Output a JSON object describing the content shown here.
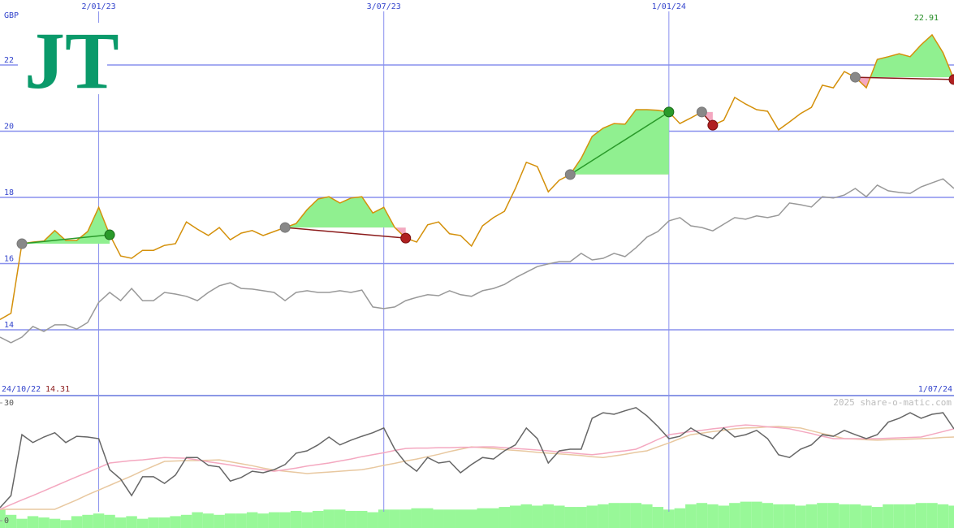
{
  "logo": "JT",
  "source": "2025 share-o-matic.com",
  "chart_data": [
    {
      "type": "line",
      "ylabel": "GBP",
      "categories": [
        "24/10/22",
        null,
        null,
        null,
        null,
        null,
        null,
        null,
        null,
        "2/01/23",
        null,
        null,
        null,
        null,
        null,
        null,
        null,
        null,
        null,
        null,
        null,
        null,
        null,
        null,
        null,
        null,
        null,
        null,
        null,
        null,
        null,
        null,
        null,
        null,
        null,
        "3/07/23",
        null,
        null,
        null,
        null,
        null,
        null,
        null,
        null,
        null,
        null,
        null,
        null,
        null,
        null,
        null,
        null,
        null,
        null,
        null,
        null,
        null,
        null,
        null,
        null,
        null,
        "1/01/24",
        null,
        null,
        null,
        null,
        null,
        null,
        null,
        null,
        null,
        null,
        null,
        null,
        null,
        null,
        null,
        null,
        null,
        null,
        null,
        null,
        null,
        null,
        null,
        null,
        null,
        "1/07/24"
      ],
      "ylim": [
        12,
        24
      ],
      "yticks": [
        14,
        16,
        18,
        20,
        22
      ],
      "grid": true,
      "series": [
        {
          "color": "#d4900a",
          "values": [
            14.31,
            14.5,
            16.6,
            16.65,
            16.68,
            17.0,
            16.7,
            16.7,
            16.97,
            17.7,
            16.87,
            16.23,
            16.16,
            16.4,
            16.4,
            16.55,
            16.6,
            17.26,
            17.04,
            16.85,
            17.09,
            16.72,
            16.92,
            17.0,
            16.85,
            16.97,
            17.09,
            17.21,
            17.63,
            17.95,
            18.02,
            17.83,
            17.98,
            18.02,
            17.53,
            17.7,
            17.09,
            16.77,
            16.65,
            17.17,
            17.26,
            16.9,
            16.85,
            16.53,
            17.14,
            17.39,
            17.58,
            18.27,
            19.06,
            18.93,
            18.17,
            18.52,
            18.69,
            19.18,
            19.84,
            20.09,
            20.23,
            20.21,
            20.65,
            20.65,
            20.63,
            20.58,
            20.23,
            20.4,
            20.58,
            20.18,
            20.33,
            21.02,
            20.82,
            20.65,
            20.6,
            20.04,
            20.28,
            20.53,
            20.72,
            21.39,
            21.31,
            21.8,
            21.63,
            21.31,
            22.17,
            22.25,
            22.34,
            22.25,
            22.61,
            22.91,
            22.37,
            21.56
          ]
        },
        {
          "color": "#999999",
          "values": [
            13.78,
            13.61,
            13.78,
            14.1,
            13.95,
            14.15,
            14.15,
            14.02,
            14.22,
            14.83,
            15.13,
            14.88,
            15.25,
            14.88,
            14.88,
            15.13,
            15.08,
            15.01,
            14.88,
            15.13,
            15.33,
            15.42,
            15.25,
            15.23,
            15.18,
            15.13,
            14.88,
            15.13,
            15.18,
            15.13,
            15.13,
            15.18,
            15.13,
            15.2,
            14.69,
            14.64,
            14.69,
            14.88,
            14.98,
            15.06,
            15.03,
            15.18,
            15.06,
            15.01,
            15.18,
            15.25,
            15.37,
            15.57,
            15.74,
            15.91,
            15.99,
            16.06,
            16.06,
            16.31,
            16.11,
            16.16,
            16.31,
            16.21,
            16.48,
            16.8,
            16.97,
            17.29,
            17.39,
            17.14,
            17.09,
            16.99,
            17.19,
            17.39,
            17.34,
            17.44,
            17.39,
            17.46,
            17.83,
            17.78,
            17.71,
            18.02,
            17.98,
            18.07,
            18.27,
            18.02,
            18.37,
            18.2,
            18.15,
            18.12,
            18.32,
            18.44,
            18.56,
            18.27
          ]
        }
      ],
      "trades": [
        {
          "entry": 2,
          "exit": 10
        },
        {
          "entry": 26,
          "exit": 37
        },
        {
          "entry": 52,
          "exit": 61
        },
        {
          "entry": 64,
          "exit": 65
        },
        {
          "entry": 78,
          "exit": 87
        }
      ],
      "gain_color": "#90f090",
      "loss_color": "#f4a8c0",
      "annotations": [
        {
          "text": "14.31",
          "color": "#8b1a1a"
        },
        {
          "text": "22.91",
          "color": "#228b22"
        }
      ]
    },
    {
      "type": "line",
      "ylim": [
        0,
        30
      ],
      "yticks": [
        0,
        30
      ],
      "y2lim": [
        0,
        100
      ],
      "series": [
        {
          "type": "bar",
          "axis": "y2",
          "color": "#98f898",
          "values": [
            14,
            10,
            7,
            9,
            8,
            7,
            6,
            9,
            10,
            11,
            10,
            8,
            9,
            7,
            8,
            8,
            9,
            10,
            12,
            11,
            10,
            11,
            11,
            12,
            11,
            12,
            12,
            13,
            12,
            13,
            14,
            14,
            13,
            13,
            12,
            14,
            14,
            14,
            15,
            15,
            14,
            14,
            14,
            14,
            15,
            15,
            16,
            17,
            18,
            17,
            18,
            17,
            16,
            16,
            17,
            18,
            19,
            19,
            19,
            18,
            16,
            14,
            15,
            18,
            19,
            18,
            17,
            19,
            20,
            20,
            19,
            18,
            18,
            17,
            18,
            19,
            19,
            18,
            18,
            17,
            16,
            18,
            18,
            18,
            19,
            19,
            18,
            17
          ]
        },
        {
          "color": "#e8c8a0",
          "values": [
            2.9,
            2.9,
            2.9,
            2.9,
            2.9,
            2.9,
            4.1,
            5.3,
            6.6,
            7.8,
            9.0,
            10.2,
            11.4,
            12.7,
            13.9,
            15.1,
            15.2,
            15.3,
            15.3,
            15.4,
            15.5,
            15.0,
            14.5,
            14.0,
            13.4,
            12.9,
            12.6,
            12.3,
            12.0,
            12.2,
            12.4,
            12.6,
            12.8,
            13.0,
            13.5,
            14.1,
            14.6,
            15.2,
            15.7,
            16.3,
            16.9,
            17.6,
            18.2,
            18.8,
            18.6,
            18.4,
            18.1,
            17.9,
            17.7,
            17.4,
            17.2,
            17.0,
            16.8,
            16.6,
            16.3,
            16.1,
            16.5,
            16.9,
            17.4,
            17.8,
            18.8,
            19.8,
            20.9,
            21.9,
            22.3,
            22.7,
            23.0,
            23.4,
            23.6,
            23.7,
            23.9,
            24.0,
            23.8,
            23.6,
            22.9,
            22.2,
            21.6,
            20.9,
            20.8,
            20.6,
            20.5,
            20.6,
            20.7,
            20.8,
            20.9,
            21.0,
            21.2,
            21.3
          ]
        },
        {
          "color": "#f4a8c0",
          "values": [
            2.9,
            4.1,
            5.3,
            6.4,
            7.6,
            8.8,
            10.0,
            11.2,
            12.3,
            13.5,
            14.7,
            15.0,
            15.3,
            15.5,
            15.8,
            16.1,
            16.0,
            15.9,
            15.5,
            15.0,
            14.6,
            14.2,
            13.7,
            13.3,
            13.0,
            12.6,
            13.0,
            13.4,
            13.9,
            14.3,
            14.7,
            15.2,
            15.7,
            16.3,
            16.8,
            17.3,
            17.9,
            18.4,
            18.5,
            18.5,
            18.6,
            18.6,
            18.7,
            18.7,
            18.8,
            18.8,
            18.6,
            18.4,
            18.2,
            18.0,
            17.8,
            17.5,
            17.3,
            17.0,
            16.8,
            17.1,
            17.5,
            17.8,
            18.2,
            19.4,
            20.7,
            21.9,
            22.3,
            22.7,
            23.0,
            23.4,
            23.7,
            24.1,
            24.4,
            24.2,
            23.9,
            23.7,
            23.4,
            22.8,
            22.2,
            21.5,
            20.9,
            20.9,
            20.9,
            20.9,
            20.9,
            21.0,
            21.1,
            21.2,
            21.3,
            22.0,
            22.7,
            23.4
          ]
        },
        {
          "color": "#666666",
          "values": [
            3.3,
            6.4,
            21.9,
            19.9,
            21.3,
            22.4,
            19.9,
            21.5,
            21.3,
            20.9,
            13.0,
            10.6,
            6.4,
            11.2,
            11.2,
            9.5,
            11.6,
            16.1,
            16.1,
            14.1,
            13.7,
            10.1,
            11.0,
            12.6,
            12.2,
            13.0,
            14.3,
            17.2,
            17.8,
            19.3,
            21.3,
            19.3,
            20.5,
            21.5,
            22.4,
            23.6,
            18.2,
            14.7,
            12.6,
            16.1,
            14.7,
            15.1,
            12.2,
            14.3,
            16.1,
            15.7,
            17.8,
            19.3,
            23.6,
            20.9,
            14.7,
            17.8,
            18.2,
            18.2,
            26.1,
            27.5,
            27.1,
            28.0,
            28.8,
            26.7,
            24.0,
            20.9,
            21.5,
            23.6,
            21.9,
            20.9,
            23.6,
            21.3,
            21.9,
            23.0,
            20.9,
            16.8,
            16.1,
            18.2,
            19.3,
            21.9,
            21.5,
            23.0,
            21.9,
            20.9,
            21.9,
            25.1,
            26.1,
            27.5,
            26.1,
            27.1,
            27.5,
            23.4
          ]
        }
      ]
    }
  ]
}
